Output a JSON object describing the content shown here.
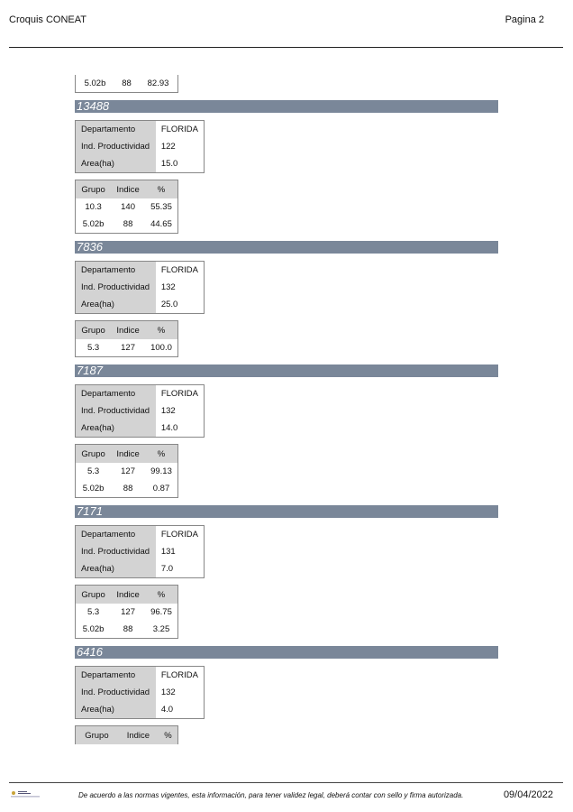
{
  "header": {
    "title": "Croquis CONEAT",
    "page": "Pagina 2"
  },
  "continued_row": [
    "5.02b",
    "88",
    "82.93"
  ],
  "labels": {
    "departamento": "Departamento",
    "ind_prod": "Ind. Productividad",
    "area": "Area(ha)",
    "grupo": "Grupo",
    "indice": "Indice",
    "pct": "%"
  },
  "sections": [
    {
      "id": "13488",
      "departamento": "FLORIDA",
      "ind_prod": "122",
      "area": "15.0",
      "rows": [
        [
          "10.3",
          "140",
          "55.35"
        ],
        [
          "5.02b",
          "88",
          "44.65"
        ]
      ]
    },
    {
      "id": "7836",
      "departamento": "FLORIDA",
      "ind_prod": "132",
      "area": "25.0",
      "rows": [
        [
          "5.3",
          "127",
          "100.0"
        ]
      ]
    },
    {
      "id": "7187",
      "departamento": "FLORIDA",
      "ind_prod": "132",
      "area": "14.0",
      "rows": [
        [
          "5.3",
          "127",
          "99.13"
        ],
        [
          "5.02b",
          "88",
          "0.87"
        ]
      ]
    },
    {
      "id": "7171",
      "departamento": "FLORIDA",
      "ind_prod": "131",
      "area": "7.0",
      "rows": [
        [
          "5.3",
          "127",
          "96.75"
        ],
        [
          "5.02b",
          "88",
          "3.25"
        ]
      ]
    },
    {
      "id": "6416",
      "departamento": "FLORIDA",
      "ind_prod": "132",
      "area": "4.0",
      "rows": []
    }
  ],
  "footer": {
    "note": "De acuerdo a las normas vigentes, esta información, para tener validez legal, deberá contar con sello y firma autorizada.",
    "date": "09/04/2022",
    "logo_icon": "government-logo-icon"
  }
}
